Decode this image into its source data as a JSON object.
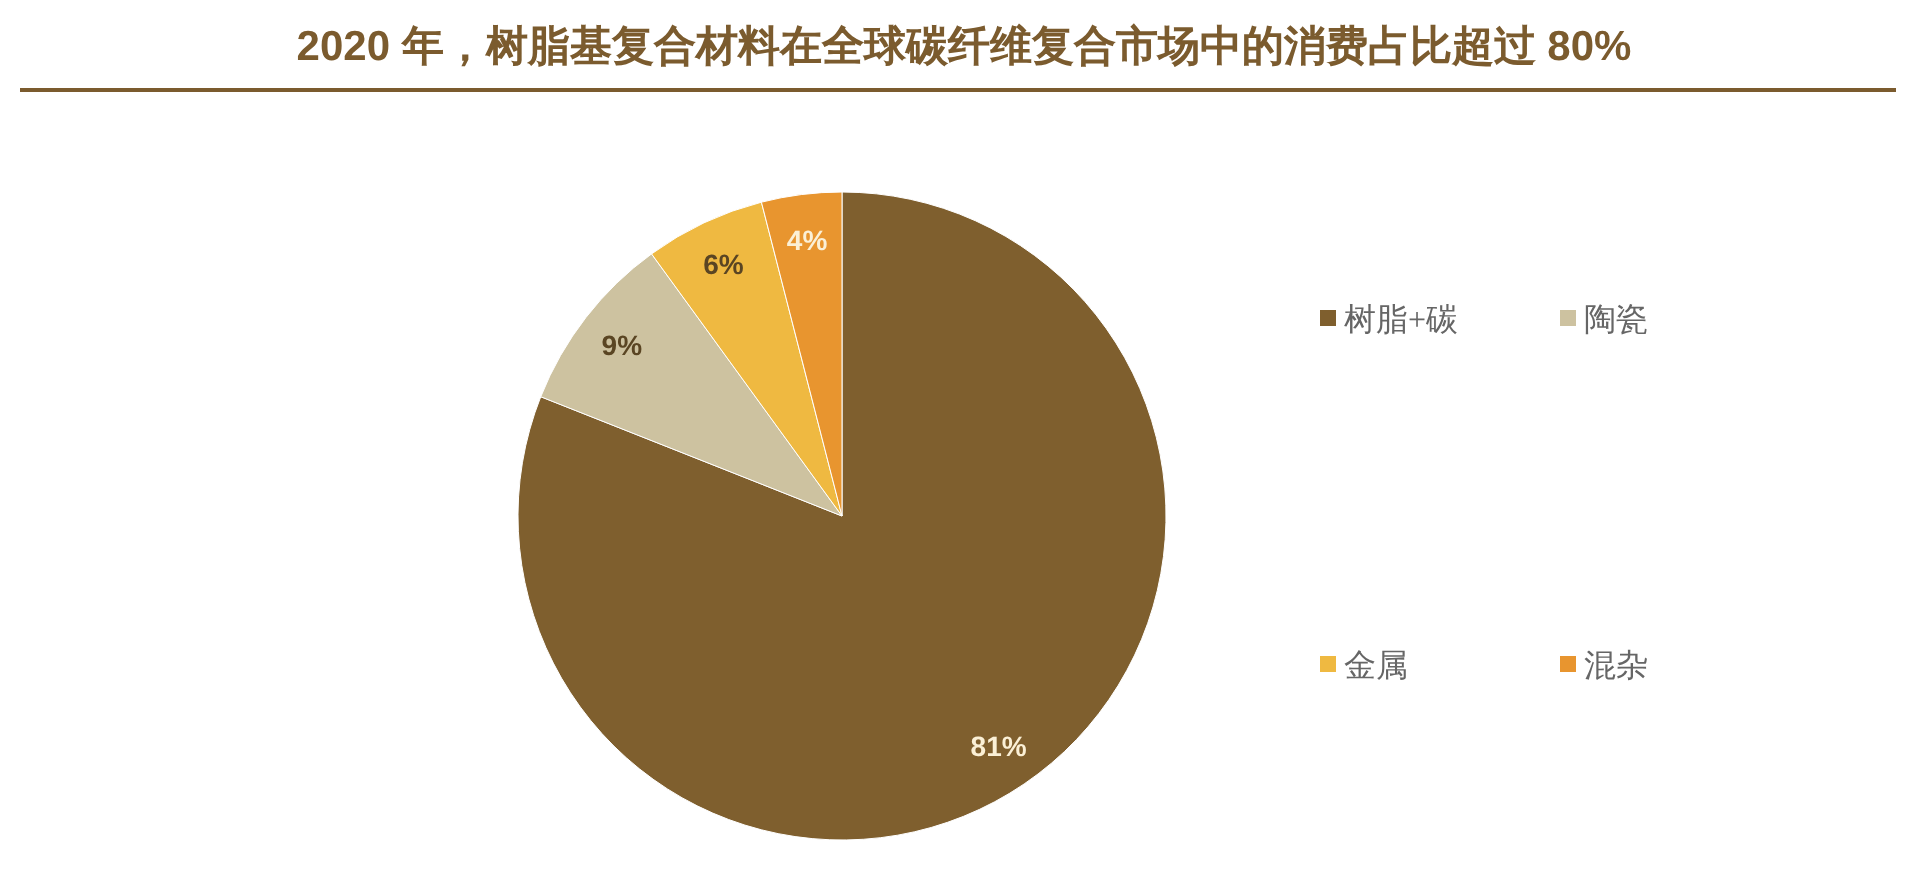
{
  "chart_data": {
    "type": "pie",
    "title": "2020 年，树脂基复合材料在全球碳纤维复合市场中的消费占比超过 80%",
    "categories": [
      "树脂+碳",
      "陶瓷",
      "金属",
      "混杂"
    ],
    "values": [
      81,
      9,
      6,
      4
    ],
    "colors": [
      "#7f5f2e",
      "#cdc2a0",
      "#efb941",
      "#e8952f"
    ],
    "value_labels": [
      "81%",
      "9%",
      "6%",
      "4%"
    ],
    "legend": "right"
  }
}
